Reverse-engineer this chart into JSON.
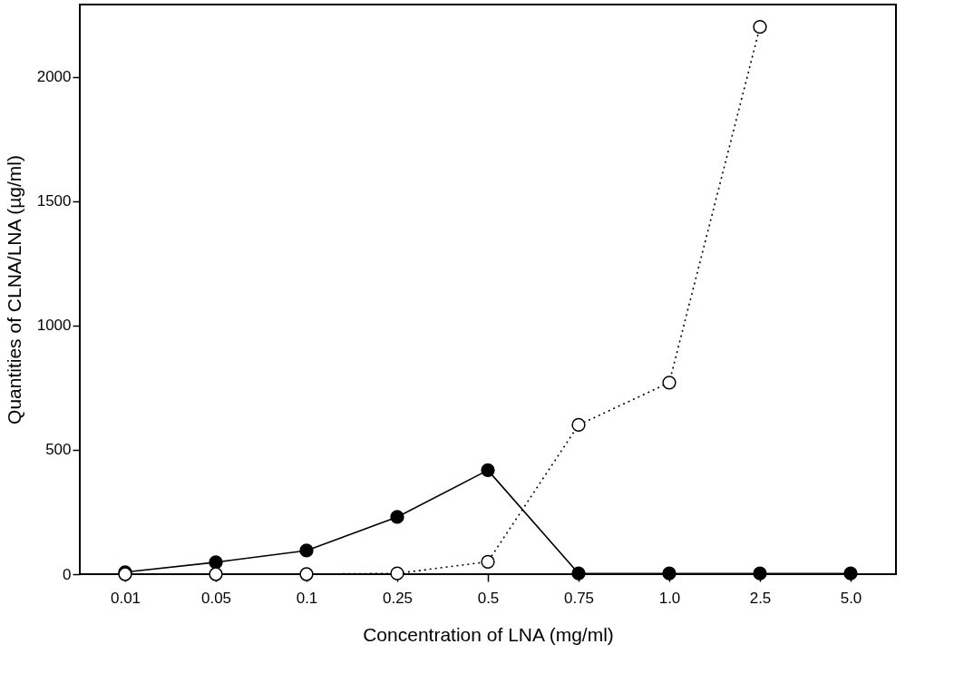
{
  "chart_data": {
    "type": "line",
    "xlabel": "Concentration of LNA (mg/ml)",
    "ylabel": "Quantities of CLNA/LNA (µg/ml)",
    "categories": [
      "0.01",
      "0.05",
      "0.1",
      "0.25",
      "0.5",
      "0.75",
      "1.0",
      "2.5",
      "5.0"
    ],
    "series": [
      {
        "color": "#000000",
        "line_style": "solid",
        "values": [
          8,
          48,
          95,
          230,
          418,
          3,
          3,
          3,
          3
        ]
      },
      {
        "color": "#000000",
        "line_style": "dotted",
        "values": [
          0,
          0,
          0,
          3,
          50,
          600,
          770,
          2200,
          null
        ]
      }
    ],
    "ylim": [
      0,
      2290
    ],
    "yticks": [
      0,
      500,
      1000,
      1500,
      2000
    ],
    "grid": false,
    "marker": "circle"
  }
}
